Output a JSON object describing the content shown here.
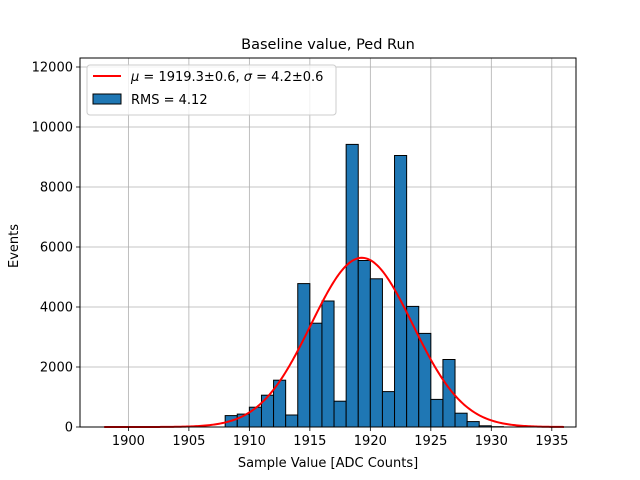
{
  "chart_data": {
    "type": "histogram",
    "title": "Baseline value, Ped Run",
    "xlabel": "Sample Value [ADC Counts]",
    "ylabel": "Events",
    "xlim": [
      1896,
      1937
    ],
    "ylim": [
      0,
      12300
    ],
    "xticks": [
      1900,
      1905,
      1910,
      1915,
      1920,
      1925,
      1930,
      1935
    ],
    "yticks": [
      0,
      2000,
      4000,
      6000,
      8000,
      10000,
      12000
    ],
    "grid": true,
    "legend_position": "top-left",
    "bin_width": 1,
    "bars": [
      {
        "x": 1908.5,
        "value": 380
      },
      {
        "x": 1909.5,
        "value": 430
      },
      {
        "x": 1910.5,
        "value": 660
      },
      {
        "x": 1911.5,
        "value": 1060
      },
      {
        "x": 1912.5,
        "value": 1560
      },
      {
        "x": 1913.5,
        "value": 400
      },
      {
        "x": 1914.5,
        "value": 4780
      },
      {
        "x": 1915.5,
        "value": 3460
      },
      {
        "x": 1916.5,
        "value": 4200
      },
      {
        "x": 1917.5,
        "value": 860
      },
      {
        "x": 1918.5,
        "value": 9420
      },
      {
        "x": 1919.5,
        "value": 5550
      },
      {
        "x": 1920.5,
        "value": 4940
      },
      {
        "x": 1921.5,
        "value": 1180
      },
      {
        "x": 1922.5,
        "value": 9050
      },
      {
        "x": 1923.5,
        "value": 4020
      },
      {
        "x": 1924.5,
        "value": 3120
      },
      {
        "x": 1925.5,
        "value": 920
      },
      {
        "x": 1926.5,
        "value": 2250
      },
      {
        "x": 1927.5,
        "value": 460
      },
      {
        "x": 1928.5,
        "value": 180
      },
      {
        "x": 1929.5,
        "value": 40
      },
      {
        "x": 1930.5,
        "value": 10
      }
    ],
    "fit": {
      "mu": 1919.3,
      "sigma": 4.2,
      "amplitude": 5640,
      "x_range": [
        1898,
        1936
      ]
    },
    "legend": [
      {
        "kind": "line",
        "label_prefix": "μ",
        "label_body": " = 1919.3±0.6, ",
        "label_prefix2": "σ",
        "label_body2": " = 4.2±0.6",
        "color": "#ff0000"
      },
      {
        "kind": "patch",
        "label": "RMS = 4.12",
        "color": "#1f77b4"
      }
    ],
    "colors": {
      "bar": "#1f77b4",
      "bar_edge": "#000000",
      "fit": "#ff0000",
      "grid": "#b0b0b0"
    }
  }
}
